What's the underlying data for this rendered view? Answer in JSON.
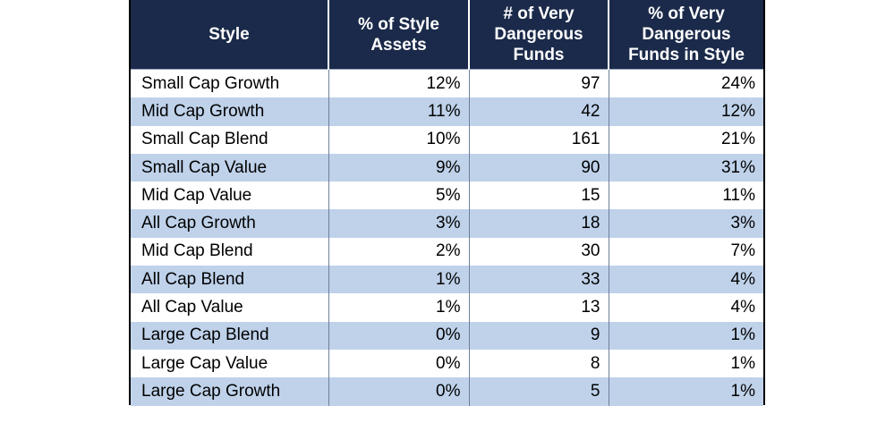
{
  "table": {
    "headers": [
      "Style",
      "% of Style Assets",
      "# of Very Dangerous Funds",
      "% of Very Dangerous Funds in Style"
    ],
    "rows": [
      {
        "style": "Small Cap Growth",
        "assets": "12%",
        "funds": "97",
        "pct": "24%"
      },
      {
        "style": "Mid Cap Growth",
        "assets": "11%",
        "funds": "42",
        "pct": "12%"
      },
      {
        "style": "Small Cap Blend",
        "assets": "10%",
        "funds": "161",
        "pct": "21%"
      },
      {
        "style": "Small Cap Value",
        "assets": "9%",
        "funds": "90",
        "pct": "31%"
      },
      {
        "style": "Mid Cap Value",
        "assets": "5%",
        "funds": "15",
        "pct": "11%"
      },
      {
        "style": "All Cap Growth",
        "assets": "3%",
        "funds": "18",
        "pct": "3%"
      },
      {
        "style": "Mid Cap Blend",
        "assets": "2%",
        "funds": "30",
        "pct": "7%"
      },
      {
        "style": "All Cap Blend",
        "assets": "1%",
        "funds": "33",
        "pct": "4%"
      },
      {
        "style": "All Cap Value",
        "assets": "1%",
        "funds": "13",
        "pct": "4%"
      },
      {
        "style": "Large Cap Blend",
        "assets": "0%",
        "funds": "9",
        "pct": "1%"
      },
      {
        "style": "Large Cap Value",
        "assets": "0%",
        "funds": "8",
        "pct": "1%"
      },
      {
        "style": "Large Cap Growth",
        "assets": "0%",
        "funds": "5",
        "pct": "1%"
      }
    ]
  },
  "colors": {
    "header_bg": "#1b2a4a",
    "header_text": "#ffffff",
    "alt_row_bg": "#bfd2ea"
  }
}
